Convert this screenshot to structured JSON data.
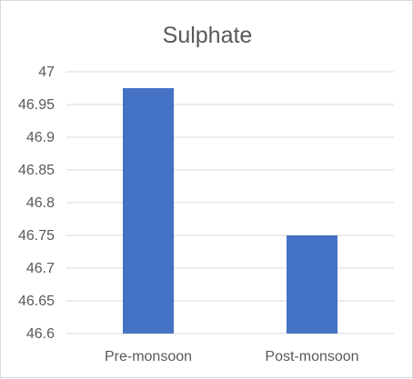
{
  "chart_data": {
    "type": "bar",
    "title": "Sulphate",
    "categories": [
      "Pre-monsoon",
      "Post-monsoon"
    ],
    "values": [
      46.975,
      46.75
    ],
    "xlabel": "",
    "ylabel": "",
    "ylim": [
      46.6,
      47
    ],
    "yticks": [
      "46.6",
      "46.65",
      "46.7",
      "46.75",
      "46.8",
      "46.85",
      "46.9",
      "46.95",
      "47"
    ],
    "grid": true,
    "legend": "none",
    "bar_color": "#4472c4",
    "grid_color": "#d9d9d9",
    "text_color": "#595959"
  }
}
